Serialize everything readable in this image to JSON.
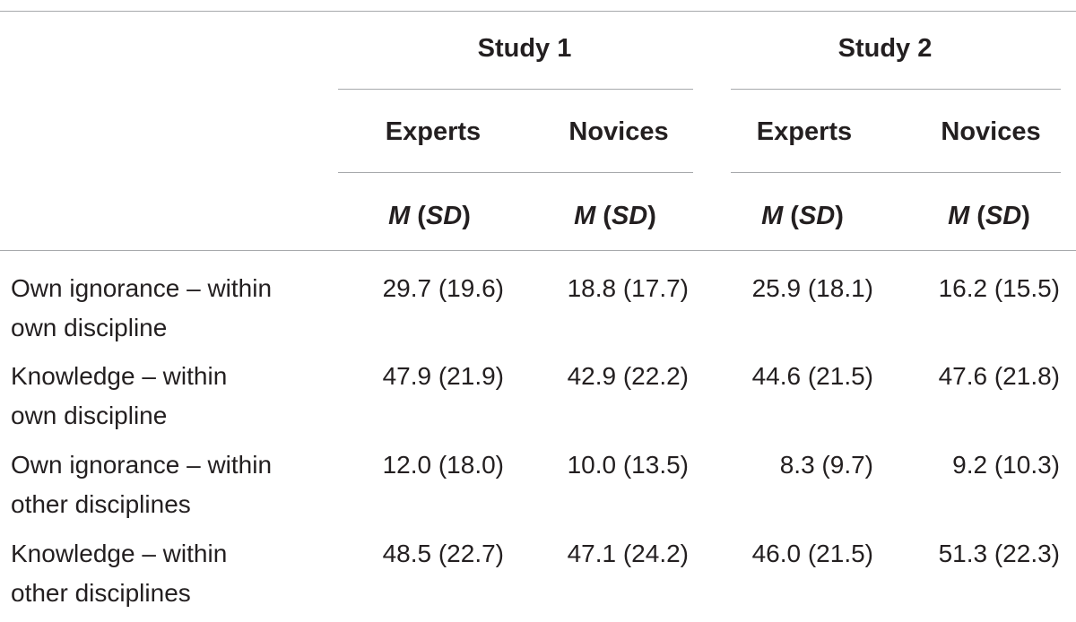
{
  "table": {
    "studies": [
      "Study 1",
      "Study 2"
    ],
    "groups": [
      "Experts",
      "Novices",
      "Experts",
      "Novices"
    ],
    "stat_header": {
      "m": "M",
      "sd": "SD"
    },
    "rows": [
      {
        "label_line1": "Own ignorance – within",
        "label_line2": "own discipline",
        "values": [
          "29.7 (19.6)",
          "18.8 (17.7)",
          "25.9 (18.1)",
          "16.2 (15.5)"
        ]
      },
      {
        "label_line1": "Knowledge – within",
        "label_line2": "own discipline",
        "values": [
          "47.9 (21.9)",
          "42.9 (22.2)",
          "44.6 (21.5)",
          "47.6 (21.8)"
        ]
      },
      {
        "label_line1": "Own ignorance – within",
        "label_line2": "other disciplines",
        "values": [
          "12.0 (18.0)",
          "10.0 (13.5)",
          "8.3 (9.7)",
          "9.2 (10.3)"
        ]
      },
      {
        "label_line1": "Knowledge – within",
        "label_line2": "other disciplines",
        "values": [
          "48.5 (22.7)",
          "47.1 (24.2)",
          "46.0 (21.5)",
          "51.3 (22.3)"
        ]
      }
    ]
  }
}
